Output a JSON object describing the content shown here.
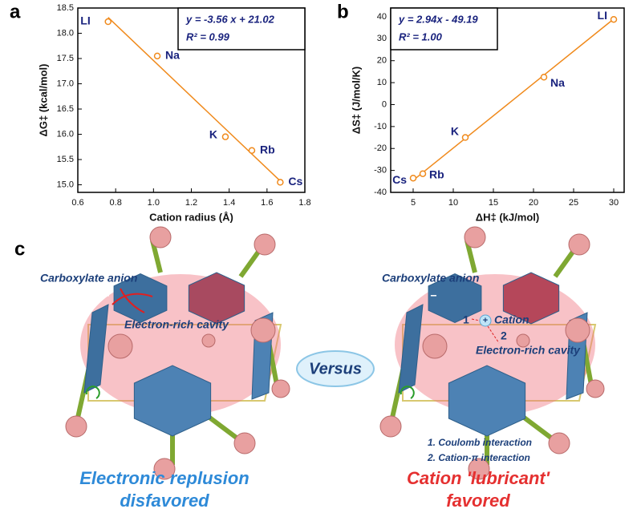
{
  "chart_data": [
    {
      "type": "scatter",
      "panel": "a",
      "x": [
        0.76,
        1.02,
        1.38,
        1.52,
        1.67
      ],
      "y": [
        18.23,
        17.55,
        15.95,
        15.68,
        15.05
      ],
      "point_labels": [
        "LI",
        "Na",
        "K",
        "Rb",
        "Cs"
      ],
      "color": "#f08a1c",
      "xlim": [
        0.6,
        1.8
      ],
      "ylim": [
        14.85,
        18.5
      ],
      "xticks": [
        0.6,
        0.8,
        {
          "value": 1,
          "label": "1.0"
        },
        1.2,
        1.4,
        1.6,
        1.8
      ],
      "yticks": [
        {
          "value": 15,
          "label": "15.0"
        },
        15.5,
        {
          "value": 16,
          "label": "16.0"
        },
        16.5,
        {
          "value": 17,
          "label": "17.0"
        },
        17.5,
        {
          "value": 18,
          "label": "18.0"
        },
        18.5
      ],
      "xlabel": "Cation radius (Å)",
      "ylabel": "ΔG‡ (kcal/mol)",
      "equation": "y = -3.56 x + 21.02",
      "r2": "R² = 0.99",
      "trendline": {
        "slope": -3.56,
        "intercept": 21.02,
        "x": [
          0.76,
          1.67
        ]
      }
    },
    {
      "type": "scatter",
      "panel": "b",
      "x": [
        30.0,
        21.3,
        11.5,
        6.2,
        5.0
      ],
      "y": [
        38.8,
        12.5,
        -15,
        -31.5,
        -33.5
      ],
      "point_labels": [
        "LI",
        "Na",
        "K",
        "Rb",
        "Cs"
      ],
      "color": "#f08a1c",
      "xlim": [
        2.2,
        31.3
      ],
      "ylim": [
        -40,
        44
      ],
      "xticks": [
        5,
        10,
        15,
        20,
        25,
        30
      ],
      "yticks": [
        -40,
        -30,
        -20,
        -10,
        0,
        10,
        20,
        30,
        40
      ],
      "xlabel": "ΔH‡ (kJ/mol)",
      "ylabel": "ΔS‡ (J/mol/K)",
      "equation": "y = 2.94x - 49.19",
      "r2": "R² = 1.00",
      "trendline": {
        "slope": 2.94,
        "intercept": -49.19,
        "x": [
          5.0,
          30.0
        ]
      }
    }
  ],
  "diagram": {
    "panel": "c",
    "left": {
      "anion_label": "Carboxylate anion",
      "charge": "−",
      "cavity_label": "Electron-rich cavity",
      "caption": [
        "Electronic replusion",
        "disfavored"
      ]
    },
    "versus": "Versus",
    "right": {
      "anion_label": "Carboxylate anion",
      "charge": "−",
      "cation_label": "Cation",
      "cation_charge": "+",
      "markers": [
        "1",
        "2"
      ],
      "cavity_label": "Electron-rich cavity",
      "notes": [
        "1. Coulomb interaction",
        "2. Cation-π interaction"
      ],
      "caption": [
        "Cation 'lubricant'",
        "favored"
      ]
    }
  }
}
